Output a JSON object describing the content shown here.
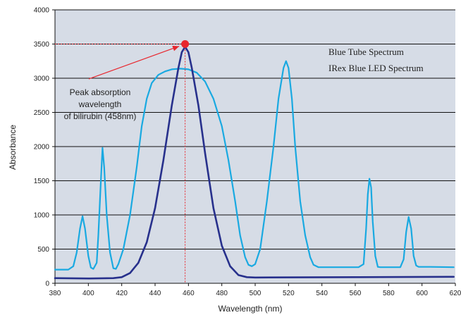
{
  "chart_data": {
    "type": "line",
    "title": "",
    "xlabel": "Wavelength (nm)",
    "ylabel": "Absorbance",
    "xlim": [
      380,
      620
    ],
    "ylim": [
      0,
      4000
    ],
    "x_ticks": [
      380,
      400,
      420,
      440,
      460,
      480,
      500,
      520,
      540,
      560,
      580,
      600,
      620
    ],
    "y_ticks": [
      0,
      500,
      1000,
      1500,
      2000,
      2500,
      3000,
      3500,
      4000
    ],
    "grid": "horizontal",
    "legend_placement": "top-right",
    "plot_background": "#d6dce6",
    "series": [
      {
        "name": "Blue Tube Spectrum",
        "color": "#19a9e1",
        "points": [
          [
            380,
            200
          ],
          [
            388,
            200
          ],
          [
            391,
            250
          ],
          [
            393,
            450
          ],
          [
            395,
            800
          ],
          [
            396.5,
            980
          ],
          [
            398,
            800
          ],
          [
            400,
            400
          ],
          [
            401.5,
            230
          ],
          [
            403,
            210
          ],
          [
            405,
            300
          ],
          [
            406,
            700
          ],
          [
            407.5,
            1500
          ],
          [
            408.5,
            1980
          ],
          [
            409.5,
            1700
          ],
          [
            411,
            1000
          ],
          [
            413,
            450
          ],
          [
            415,
            220
          ],
          [
            416.5,
            210
          ],
          [
            418,
            280
          ],
          [
            421,
            500
          ],
          [
            425,
            1000
          ],
          [
            429,
            1700
          ],
          [
            432,
            2300
          ],
          [
            435,
            2700
          ],
          [
            438,
            2930
          ],
          [
            442,
            3050
          ],
          [
            446,
            3100
          ],
          [
            450,
            3130
          ],
          [
            455,
            3140
          ],
          [
            460,
            3130
          ],
          [
            465,
            3080
          ],
          [
            470,
            2950
          ],
          [
            475,
            2700
          ],
          [
            480,
            2300
          ],
          [
            484,
            1800
          ],
          [
            488,
            1200
          ],
          [
            491,
            700
          ],
          [
            494,
            380
          ],
          [
            496,
            270
          ],
          [
            498,
            250
          ],
          [
            500,
            280
          ],
          [
            503,
            500
          ],
          [
            507,
            1200
          ],
          [
            511,
            2000
          ],
          [
            514,
            2700
          ],
          [
            517,
            3150
          ],
          [
            518.5,
            3250
          ],
          [
            520,
            3150
          ],
          [
            522,
            2700
          ],
          [
            524,
            2000
          ],
          [
            527,
            1200
          ],
          [
            530,
            700
          ],
          [
            533,
            380
          ],
          [
            535,
            270
          ],
          [
            538,
            235
          ],
          [
            545,
            235
          ],
          [
            555,
            235
          ],
          [
            562,
            235
          ],
          [
            565,
            280
          ],
          [
            566.5,
            800
          ],
          [
            567.5,
            1300
          ],
          [
            568.5,
            1530
          ],
          [
            569.5,
            1400
          ],
          [
            570.5,
            900
          ],
          [
            572,
            400
          ],
          [
            573.5,
            240
          ],
          [
            575,
            235
          ],
          [
            587,
            235
          ],
          [
            589,
            350
          ],
          [
            590.5,
            750
          ],
          [
            592,
            970
          ],
          [
            593.5,
            800
          ],
          [
            595,
            400
          ],
          [
            596.5,
            260
          ],
          [
            598,
            240
          ],
          [
            605,
            240
          ],
          [
            619,
            235
          ]
        ]
      },
      {
        "name": "IRex Blue  LED Spectrum",
        "color": "#27308c",
        "points": [
          [
            380,
            75
          ],
          [
            400,
            70
          ],
          [
            415,
            75
          ],
          [
            420,
            90
          ],
          [
            425,
            150
          ],
          [
            430,
            300
          ],
          [
            435,
            600
          ],
          [
            440,
            1100
          ],
          [
            445,
            1800
          ],
          [
            450,
            2600
          ],
          [
            454,
            3150
          ],
          [
            456,
            3380
          ],
          [
            458,
            3460
          ],
          [
            460,
            3380
          ],
          [
            462,
            3150
          ],
          [
            466,
            2600
          ],
          [
            470,
            1900
          ],
          [
            475,
            1100
          ],
          [
            480,
            550
          ],
          [
            485,
            250
          ],
          [
            490,
            120
          ],
          [
            495,
            90
          ],
          [
            500,
            85
          ],
          [
            560,
            90
          ],
          [
            619,
            95
          ]
        ]
      }
    ],
    "peak_marker": {
      "x": 458,
      "y": 3500,
      "color": "#e8262d"
    },
    "annotation": {
      "lines": [
        "Peak absorption",
        "wavelength",
        "of bilirubin (458nm)"
      ],
      "color": "#e8262d"
    }
  }
}
